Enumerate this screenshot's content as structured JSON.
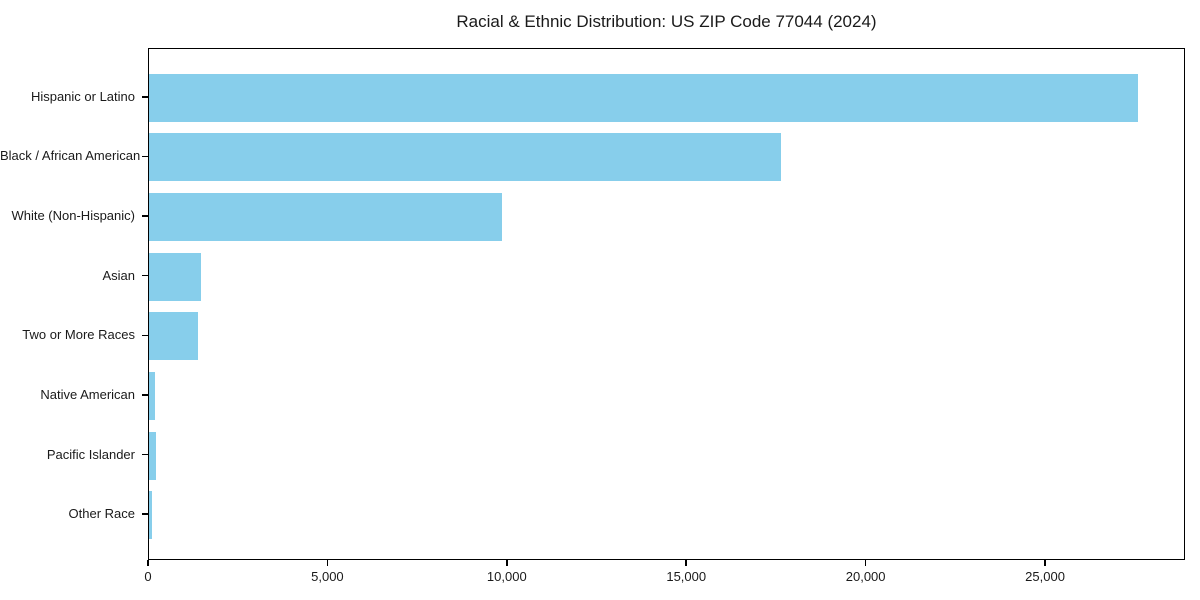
{
  "chart_data": {
    "type": "bar",
    "orientation": "horizontal",
    "title": "Racial & Ethnic Distribution: US ZIP Code 77044 (2024)",
    "categories": [
      "Hispanic or Latino",
      "Black / African American",
      "White (Non-Hispanic)",
      "Asian",
      "Two or More Races",
      "Native American",
      "Pacific Islander",
      "Other Race"
    ],
    "values": [
      27550,
      17600,
      9840,
      1460,
      1370,
      175,
      190,
      80
    ],
    "xlabel": "",
    "ylabel": "",
    "xlim": [
      0,
      28900
    ],
    "xticks": [
      0,
      5000,
      10000,
      15000,
      20000,
      25000
    ],
    "xtick_labels": [
      "0",
      "5,000",
      "10,000",
      "15,000",
      "20,000",
      "25,000"
    ],
    "bar_color": "#87CEEB",
    "axis_color": "#000000",
    "text_color": "#1a1a1a",
    "background": "#FFFFFF",
    "grid": false,
    "legend": null
  }
}
